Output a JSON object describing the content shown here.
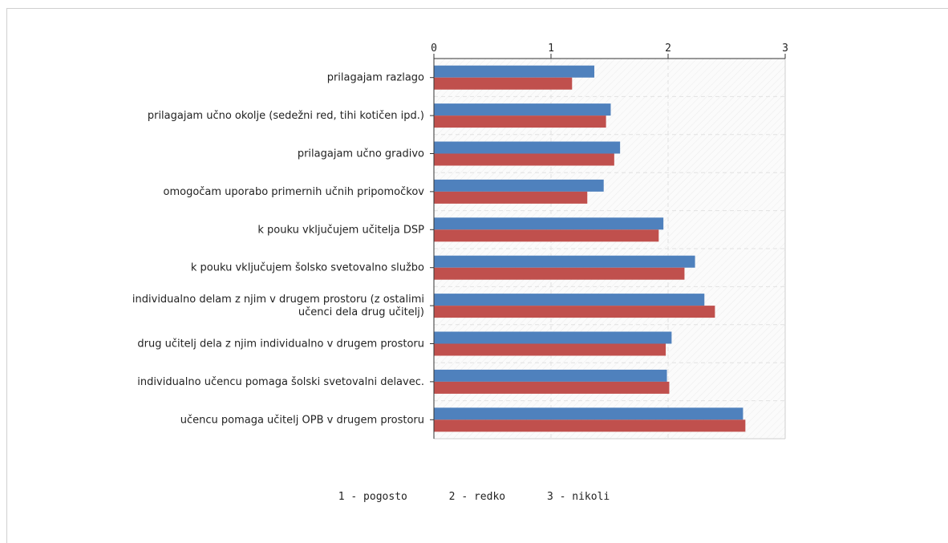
{
  "chart_data": {
    "type": "bar",
    "orientation": "horizontal",
    "categories": [
      "prilagajam razlago",
      "prilagajam učno okolje (sedežni red, tihi kotičen ipd.)",
      "prilagajam učno gradivo",
      "omogočam uporabo primernih učnih pripomočkov",
      "k pouku vključujem učitelja DSP",
      "k pouku vključujem šolsko svetovalno službo",
      "individualno delam z njim v drugem prostoru (z ostalimi\nučenci dela drug učitelj)",
      "drug učitelj dela z njim individualno v drugem prostoru",
      "individualno učencu pomaga šolski svetovalni delavec.",
      "učencu pomaga učitelj OPB v drugem prostoru"
    ],
    "series": [
      {
        "color": "#4f81bd",
        "values": [
          1.37,
          1.51,
          1.59,
          1.45,
          1.96,
          2.23,
          2.31,
          2.03,
          1.99,
          2.64
        ]
      },
      {
        "color": "#c0504d",
        "values": [
          1.18,
          1.47,
          1.54,
          1.31,
          1.92,
          2.14,
          2.4,
          1.98,
          2.01,
          2.66
        ]
      }
    ],
    "xlim": [
      0,
      3
    ],
    "xticks": [
      "0",
      "1",
      "2",
      "3"
    ],
    "grid": true,
    "legend_position": "bottom",
    "legend_items": [
      "1 - pogosto",
      "2 - redko",
      "3 - nikoli"
    ]
  }
}
